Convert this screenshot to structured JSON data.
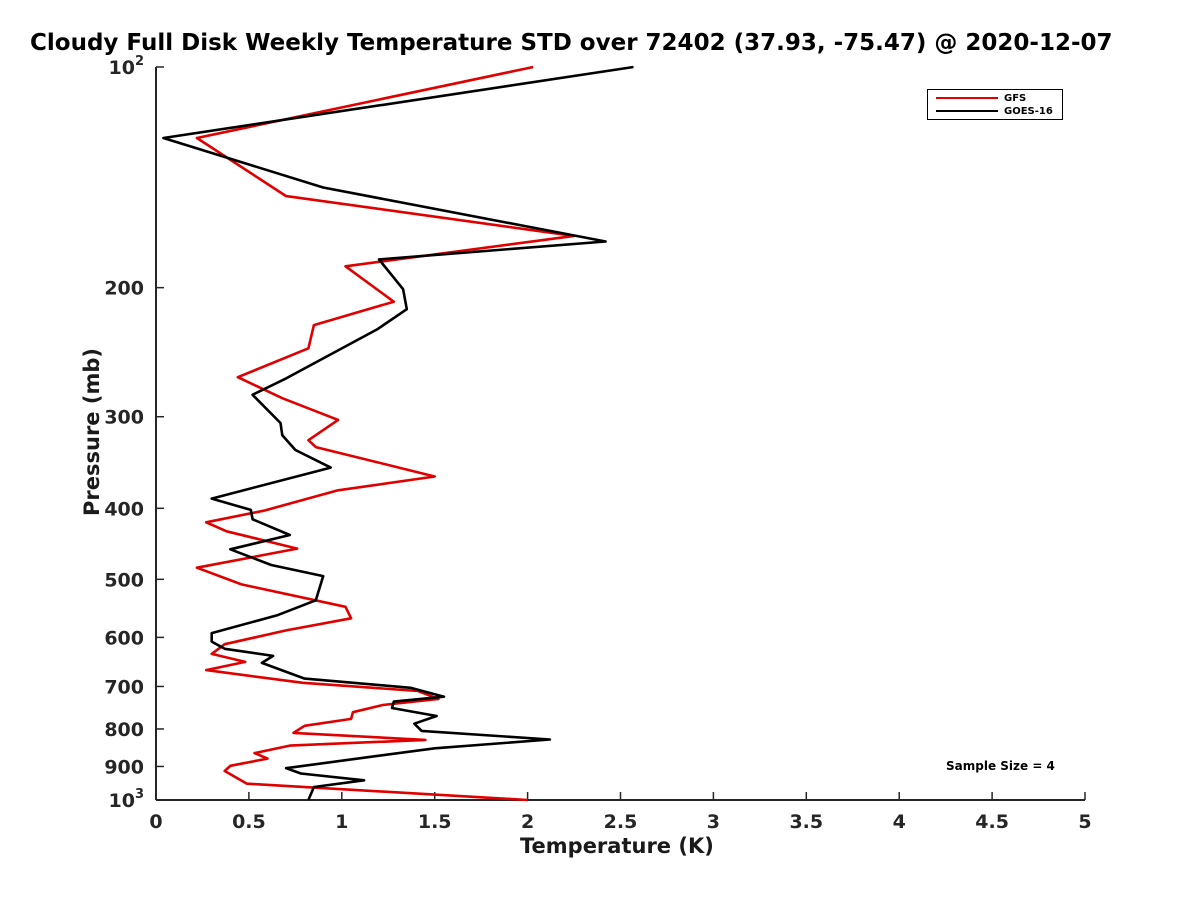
{
  "chart_data": {
    "type": "line",
    "title": "Cloudy Full Disk Weekly Temperature STD over 72402 (37.93, -75.47) @ 2020-12-07",
    "xlabel": "Temperature (K)",
    "ylabel": "Pressure (mb)",
    "xlim": [
      0,
      5
    ],
    "ylim": [
      1000,
      100
    ],
    "yscale": "log",
    "xticks": [
      "0",
      "0.5",
      "1",
      "1.5",
      "2",
      "2.5",
      "3",
      "3.5",
      "4",
      "4.5",
      "5"
    ],
    "yticks": [
      {
        "value": 100,
        "base": "10",
        "exp": "2"
      },
      {
        "value": 200,
        "label": "200"
      },
      {
        "value": 300,
        "label": "300"
      },
      {
        "value": 400,
        "label": "400"
      },
      {
        "value": 500,
        "label": "500"
      },
      {
        "value": 600,
        "label": "600"
      },
      {
        "value": 700,
        "label": "700"
      },
      {
        "value": 800,
        "label": "800"
      },
      {
        "value": 900,
        "label": "900"
      },
      {
        "value": 1000,
        "base": "10",
        "exp": "3"
      }
    ],
    "legend_position": "top-right",
    "annotation": "Sample Size = 4",
    "series": [
      {
        "name": "GFS",
        "color": "#e00000",
        "points": [
          [
            2.03,
            100
          ],
          [
            0.22,
            125
          ],
          [
            0.7,
            150
          ],
          [
            2.25,
            170
          ],
          [
            1.02,
            187
          ],
          [
            1.28,
            209
          ],
          [
            0.85,
            225
          ],
          [
            0.82,
            242
          ],
          [
            0.44,
            265
          ],
          [
            0.68,
            283
          ],
          [
            0.98,
            303
          ],
          [
            0.82,
            323
          ],
          [
            0.86,
            330
          ],
          [
            1.5,
            362
          ],
          [
            0.98,
            378
          ],
          [
            0.58,
            403
          ],
          [
            0.27,
            418
          ],
          [
            0.38,
            430
          ],
          [
            0.76,
            454
          ],
          [
            0.22,
            482
          ],
          [
            0.46,
            508
          ],
          [
            1.02,
            545
          ],
          [
            1.05,
            565
          ],
          [
            0.7,
            587
          ],
          [
            0.37,
            613
          ],
          [
            0.3,
            632
          ],
          [
            0.48,
            648
          ],
          [
            0.27,
            665
          ],
          [
            0.79,
            692
          ],
          [
            1.41,
            710
          ],
          [
            1.52,
            728
          ],
          [
            1.22,
            742
          ],
          [
            1.06,
            759
          ],
          [
            1.05,
            775
          ],
          [
            0.8,
            792
          ],
          [
            0.74,
            810
          ],
          [
            1.45,
            828
          ],
          [
            0.72,
            843
          ],
          [
            0.53,
            863
          ],
          [
            0.6,
            878
          ],
          [
            0.4,
            898
          ],
          [
            0.37,
            913
          ],
          [
            0.49,
            950
          ],
          [
            2.0,
            1000
          ]
        ]
      },
      {
        "name": "GOES-16",
        "color": "#000000",
        "points": [
          [
            2.57,
            100
          ],
          [
            0.04,
            125
          ],
          [
            0.9,
            146
          ],
          [
            2.42,
            173
          ],
          [
            1.2,
            183
          ],
          [
            1.33,
            201
          ],
          [
            1.35,
            214
          ],
          [
            1.19,
            228
          ],
          [
            0.7,
            266
          ],
          [
            0.52,
            280
          ],
          [
            0.67,
            306
          ],
          [
            0.68,
            318
          ],
          [
            0.75,
            333
          ],
          [
            0.94,
            352
          ],
          [
            0.3,
            388
          ],
          [
            0.51,
            402
          ],
          [
            0.52,
            414
          ],
          [
            0.72,
            435
          ],
          [
            0.4,
            455
          ],
          [
            0.62,
            478
          ],
          [
            0.9,
            495
          ],
          [
            0.86,
            534
          ],
          [
            0.65,
            560
          ],
          [
            0.3,
            592
          ],
          [
            0.3,
            608
          ],
          [
            0.37,
            622
          ],
          [
            0.63,
            636
          ],
          [
            0.57,
            650
          ],
          [
            0.8,
            683
          ],
          [
            1.37,
            703
          ],
          [
            1.55,
            723
          ],
          [
            1.28,
            734
          ],
          [
            1.27,
            749
          ],
          [
            1.51,
            768
          ],
          [
            1.39,
            787
          ],
          [
            1.43,
            805
          ],
          [
            2.12,
            827
          ],
          [
            1.5,
            850
          ],
          [
            1.2,
            870
          ],
          [
            0.7,
            905
          ],
          [
            0.78,
            920
          ],
          [
            1.12,
            940
          ],
          [
            0.85,
            960
          ],
          [
            0.82,
            1000
          ]
        ]
      }
    ]
  }
}
